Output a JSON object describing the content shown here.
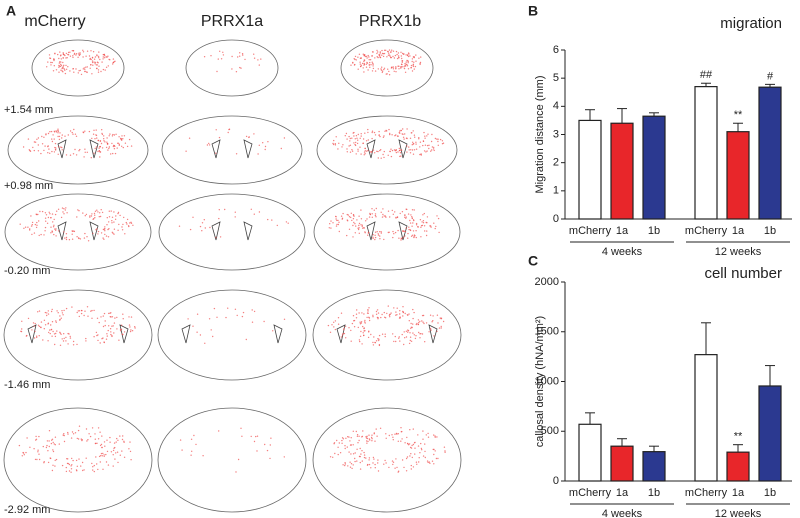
{
  "panel_A": {
    "label": "A",
    "columns": [
      "mCherry",
      "PRRX1a",
      "PRRX1b"
    ],
    "levels": [
      "+1.54 mm",
      "+0.98 mm",
      "-0.20 mm",
      "-1.46 mm",
      "-2.92 mm"
    ]
  },
  "chart_data": [
    {
      "type": "bar",
      "panel_label": "B",
      "title": "migration",
      "ylabel": "Migration distance (mm)",
      "ylim": [
        0,
        6
      ],
      "yticks": [
        0,
        1,
        2,
        3,
        4,
        5,
        6
      ],
      "colors": [
        "#ffffff",
        "#e8262a",
        "#2b3990"
      ],
      "groups": [
        {
          "label": "4 weeks",
          "categories": [
            "mCherry",
            "1a",
            "1b"
          ],
          "values": [
            3.5,
            3.4,
            3.65
          ],
          "errors": [
            0.38,
            0.52,
            0.12
          ],
          "annotations": [
            null,
            null,
            null
          ]
        },
        {
          "label": "12 weeks",
          "categories": [
            "mCherry",
            "1a",
            "1b"
          ],
          "values": [
            4.7,
            3.1,
            4.68
          ],
          "errors": [
            0.12,
            0.3,
            0.1
          ],
          "annotations": [
            "##",
            "**",
            "#"
          ]
        }
      ]
    },
    {
      "type": "bar",
      "panel_label": "C",
      "title": "cell number",
      "ylabel": "callosal density (hNA/mm²)",
      "ylim": [
        0,
        2000
      ],
      "yticks": [
        0,
        500,
        1000,
        1500,
        2000
      ],
      "colors": [
        "#ffffff",
        "#e8262a",
        "#2b3990"
      ],
      "groups": [
        {
          "label": "4 weeks",
          "categories": [
            "mCherry",
            "1a",
            "1b"
          ],
          "values": [
            570,
            350,
            295
          ],
          "errors": [
            115,
            75,
            55
          ],
          "annotations": [
            null,
            null,
            null
          ]
        },
        {
          "label": "12 weeks",
          "categories": [
            "mCherry",
            "1a",
            "1b"
          ],
          "values": [
            1270,
            290,
            955
          ],
          "errors": [
            320,
            75,
            205
          ],
          "annotations": [
            null,
            "**",
            null
          ]
        }
      ]
    }
  ]
}
